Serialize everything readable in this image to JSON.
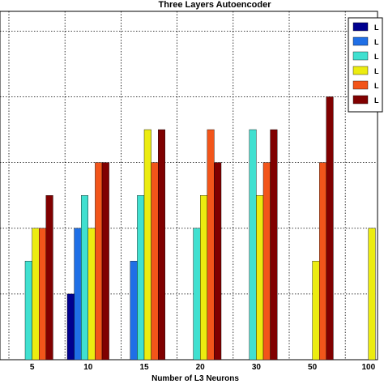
{
  "chart_data": {
    "type": "bar",
    "title": "Three Layers Autoencoder",
    "xlabel": "Number of L3 Neurons",
    "ylabel": "",
    "categories": [
      "5",
      "10",
      "15",
      "20",
      "30",
      "50",
      "100"
    ],
    "ylim": [
      0,
      5.3
    ],
    "grid": true,
    "legend": "top-right",
    "series": [
      {
        "name": "L",
        "color": "#00008f",
        "values": [
          0,
          1.0,
          0,
          0,
          0,
          0,
          0
        ]
      },
      {
        "name": "L",
        "color": "#1f6fe6",
        "values": [
          0,
          2.0,
          1.5,
          0,
          0,
          0,
          0
        ]
      },
      {
        "name": "L",
        "color": "#40e0d0",
        "values": [
          1.5,
          2.5,
          2.5,
          2.0,
          3.5,
          0,
          0
        ]
      },
      {
        "name": "L",
        "color": "#ecec10",
        "values": [
          2.0,
          2.0,
          3.5,
          2.5,
          2.5,
          1.5,
          2.0
        ]
      },
      {
        "name": "L",
        "color": "#f2551a",
        "values": [
          2.0,
          3.0,
          3.0,
          3.5,
          3.0,
          3.0,
          0
        ]
      },
      {
        "name": "L",
        "color": "#800000",
        "values": [
          2.5,
          3.0,
          3.5,
          3.0,
          3.5,
          4.0,
          0
        ]
      }
    ]
  }
}
